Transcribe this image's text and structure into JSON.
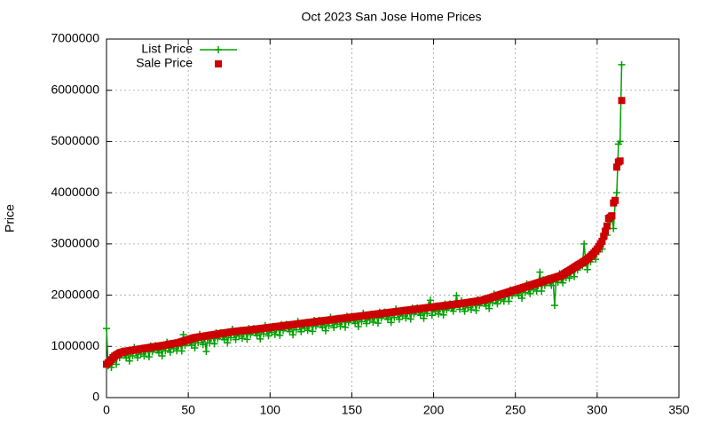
{
  "chart_data": {
    "type": "line",
    "title": "Oct 2023 San Jose Home Prices",
    "y_label": "Price",
    "grid": true,
    "legend": "top-left",
    "xlim": [
      0,
      350
    ],
    "xticks": [
      0,
      50,
      100,
      150,
      200,
      250,
      300,
      350
    ],
    "ylim": [
      0,
      7000000
    ],
    "yticks": [
      0,
      1000000,
      2000000,
      3000000,
      4000000,
      5000000,
      6000000,
      7000000
    ],
    "x": [
      0,
      1,
      2,
      3,
      4,
      5,
      6,
      7,
      8,
      9,
      10,
      11,
      12,
      13,
      14,
      15,
      16,
      17,
      18,
      19,
      20,
      21,
      22,
      23,
      24,
      25,
      26,
      27,
      28,
      29,
      30,
      31,
      32,
      33,
      34,
      35,
      36,
      37,
      38,
      39,
      40,
      41,
      42,
      43,
      44,
      45,
      46,
      47,
      48,
      49,
      50,
      51,
      52,
      53,
      54,
      55,
      56,
      57,
      58,
      59,
      60,
      61,
      62,
      63,
      64,
      65,
      66,
      67,
      68,
      69,
      70,
      71,
      72,
      73,
      74,
      75,
      76,
      77,
      78,
      79,
      80,
      81,
      82,
      83,
      84,
      85,
      86,
      87,
      88,
      89,
      90,
      91,
      92,
      93,
      94,
      95,
      96,
      97,
      98,
      99,
      100,
      101,
      102,
      103,
      104,
      105,
      106,
      107,
      108,
      109,
      110,
      111,
      112,
      113,
      114,
      115,
      116,
      117,
      118,
      119,
      120,
      121,
      122,
      123,
      124,
      125,
      126,
      127,
      128,
      129,
      130,
      131,
      132,
      133,
      134,
      135,
      136,
      137,
      138,
      139,
      140,
      141,
      142,
      143,
      144,
      145,
      146,
      147,
      148,
      149,
      150,
      151,
      152,
      153,
      154,
      155,
      156,
      157,
      158,
      159,
      160,
      161,
      162,
      163,
      164,
      165,
      166,
      167,
      168,
      169,
      170,
      171,
      172,
      173,
      174,
      175,
      176,
      177,
      178,
      179,
      180,
      181,
      182,
      183,
      184,
      185,
      186,
      187,
      188,
      189,
      190,
      191,
      192,
      193,
      194,
      195,
      196,
      197,
      198,
      199,
      200,
      201,
      202,
      203,
      204,
      205,
      206,
      207,
      208,
      209,
      210,
      211,
      212,
      213,
      214,
      215,
      216,
      217,
      218,
      219,
      220,
      221,
      222,
      223,
      224,
      225,
      226,
      227,
      228,
      229,
      230,
      231,
      232,
      233,
      234,
      235,
      236,
      237,
      238,
      239,
      240,
      241,
      242,
      243,
      244,
      245,
      246,
      247,
      248,
      249,
      250,
      251,
      252,
      253,
      254,
      255,
      256,
      257,
      258,
      259,
      260,
      261,
      262,
      263,
      264,
      265,
      266,
      267,
      268,
      269,
      270,
      271,
      272,
      273,
      274,
      275,
      276,
      277,
      278,
      279,
      280,
      281,
      282,
      283,
      284,
      285,
      286,
      287,
      288,
      289,
      290,
      291,
      292,
      293,
      294,
      295,
      296,
      297,
      298,
      299,
      300,
      301,
      302,
      303,
      304,
      305,
      306,
      307,
      308,
      309,
      310,
      311,
      312,
      313,
      314,
      315
    ],
    "series": [
      {
        "name": "List Price",
        "color": "#00a000",
        "style": "linespoints",
        "values": [
          1350000,
          620000,
          710000,
          590000,
          720000,
          790000,
          650000,
          880000,
          780000,
          830000,
          910000,
          830000,
          775000,
          880000,
          715000,
          910000,
          815000,
          980000,
          875000,
          780000,
          905000,
          850000,
          965000,
          810000,
          905000,
          950000,
          795000,
          1010000,
          895000,
          940000,
          1015000,
          930000,
          875000,
          980000,
          815000,
          1010000,
          915000,
          1080000,
          980000,
          885000,
          1010000,
          955000,
          1070000,
          915000,
          1010000,
          1060000,
          910000,
          1230000,
          1020000,
          1070000,
          1150000,
          1070000,
          1020000,
          1130000,
          970000,
          1165000,
          1070000,
          1235000,
          1130000,
          1035000,
          1160000,
          900000,
          1220000,
          1065000,
          1160000,
          1205000,
          1050000,
          1265000,
          1150000,
          1195000,
          1270000,
          1185000,
          1130000,
          1235000,
          1070000,
          1265000,
          1170000,
          1335000,
          1230000,
          1133000,
          1256000,
          1200000,
          1313000,
          1156000,
          1250000,
          1293000,
          1136000,
          1350000,
          1233000,
          1276000,
          1350000,
          1264000,
          1208000,
          1312000,
          1146000,
          1340000,
          1244000,
          1408000,
          1302000,
          1206000,
          1330000,
          1274000,
          1388000,
          1232000,
          1326000,
          1370000,
          1214000,
          1428000,
          1312000,
          1356000,
          1430000,
          1344000,
          1288000,
          1392000,
          1226000,
          1420000,
          1324000,
          1488000,
          1382000,
          1286000,
          1410000,
          1354000,
          1468000,
          1312000,
          1406000,
          1450000,
          1294000,
          1508000,
          1392000,
          1436000,
          1510000,
          1424000,
          1368000,
          1472000,
          1306000,
          1500000,
          1404000,
          1568000,
          1462000,
          1366000,
          1490000,
          1434000,
          1548000,
          1392000,
          1486000,
          1530000,
          1374000,
          1588000,
          1472000,
          1516000,
          1590000,
          1504000,
          1448000,
          1552000,
          1386000,
          1580000,
          1484000,
          1648000,
          1542000,
          1446000,
          1570000,
          1514000,
          1628000,
          1472000,
          1566000,
          1610000,
          1454000,
          1668000,
          1552000,
          1596000,
          1670000,
          1584000,
          1528000,
          1632000,
          1466000,
          1660000,
          1564000,
          1728000,
          1622000,
          1526000,
          1650000,
          1594000,
          1708000,
          1552000,
          1646000,
          1690000,
          1534000,
          1748000,
          1632000,
          1676000,
          1750000,
          1664000,
          1608000,
          1712000,
          1546000,
          1740000,
          1644000,
          1808000,
          1900000,
          1606000,
          1730000,
          1674000,
          1788000,
          1632000,
          1726000,
          1770000,
          1614000,
          1828000,
          1712000,
          1756000,
          1830000,
          1744000,
          1688000,
          1792000,
          1990000,
          1820000,
          1724000,
          1888000,
          1782000,
          1686000,
          1810000,
          1755000,
          1870000,
          1715000,
          1810000,
          1855000,
          1700000,
          1915000,
          1800000,
          1845000,
          1920000,
          1840000,
          1790000,
          1900000,
          1740000,
          1940000,
          1850000,
          2020000,
          1920000,
          1830000,
          1960000,
          1910000,
          2030000,
          1880000,
          1980000,
          2030000,
          1880000,
          2100000,
          1990000,
          2040000,
          2120000,
          2040000,
          1990000,
          2100000,
          1940000,
          2140000,
          2050000,
          2220000,
          2120000,
          2030000,
          2160000,
          2110000,
          2230000,
          2080000,
          2180000,
          2450000,
          2080000,
          2300000,
          2190000,
          2240000,
          2320000,
          2240000,
          2190000,
          2300000,
          1800000,
          2340000,
          2250000,
          2420000,
          2320000,
          2240000,
          2380000,
          2340000,
          2470000,
          2330000,
          2440000,
          2500000,
          2360000,
          2590000,
          2490000,
          2550000,
          2640000,
          2570000,
          3000000,
          2650000,
          2500000,
          2720000,
          2650000,
          2840000,
          2760000,
          2700000,
          2860000,
          2850000,
          3010000,
          2900000,
          3090000,
          3230000,
          3170000,
          3530000,
          3430000,
          3500000,
          3300000,
          3800000,
          4000000,
          4950000,
          5000000,
          6500000
        ]
      },
      {
        "name": "Sale Price",
        "color": "#cc0000",
        "style": "points",
        "values": [
          650000,
          680000,
          700000,
          740000,
          780000,
          810000,
          830000,
          850000,
          870000,
          880000,
          890000,
          900000,
          905000,
          910000,
          915000,
          920000,
          925000,
          930000,
          935000,
          940000,
          945000,
          950000,
          955000,
          960000,
          965000,
          970000,
          975000,
          980000,
          985000,
          990000,
          995000,
          1000000,
          1005000,
          1010000,
          1015000,
          1020000,
          1025000,
          1030000,
          1040000,
          1045000,
          1050000,
          1055000,
          1060000,
          1065000,
          1070000,
          1080000,
          1090000,
          1100000,
          1110000,
          1120000,
          1130000,
          1140000,
          1150000,
          1160000,
          1170000,
          1175000,
          1180000,
          1185000,
          1190000,
          1195000,
          1200000,
          1205000,
          1210000,
          1215000,
          1220000,
          1225000,
          1230000,
          1235000,
          1240000,
          1245000,
          1250000,
          1255000,
          1260000,
          1265000,
          1270000,
          1275000,
          1280000,
          1285000,
          1290000,
          1293000,
          1296000,
          1300000,
          1303000,
          1306000,
          1310000,
          1313000,
          1316000,
          1320000,
          1323000,
          1326000,
          1330000,
          1334000,
          1338000,
          1342000,
          1346000,
          1350000,
          1354000,
          1358000,
          1362000,
          1366000,
          1370000,
          1374000,
          1378000,
          1382000,
          1386000,
          1390000,
          1394000,
          1398000,
          1402000,
          1406000,
          1410000,
          1414000,
          1418000,
          1422000,
          1426000,
          1430000,
          1434000,
          1438000,
          1442000,
          1446000,
          1450000,
          1454000,
          1458000,
          1462000,
          1466000,
          1470000,
          1474000,
          1478000,
          1482000,
          1486000,
          1490000,
          1494000,
          1498000,
          1502000,
          1506000,
          1510000,
          1514000,
          1518000,
          1522000,
          1526000,
          1530000,
          1534000,
          1538000,
          1542000,
          1546000,
          1550000,
          1554000,
          1558000,
          1562000,
          1566000,
          1570000,
          1574000,
          1578000,
          1582000,
          1586000,
          1590000,
          1594000,
          1598000,
          1602000,
          1606000,
          1610000,
          1614000,
          1618000,
          1622000,
          1626000,
          1630000,
          1634000,
          1638000,
          1642000,
          1646000,
          1650000,
          1654000,
          1658000,
          1662000,
          1666000,
          1670000,
          1674000,
          1678000,
          1682000,
          1686000,
          1690000,
          1694000,
          1698000,
          1702000,
          1706000,
          1710000,
          1714000,
          1718000,
          1722000,
          1726000,
          1730000,
          1734000,
          1738000,
          1742000,
          1746000,
          1750000,
          1754000,
          1758000,
          1762000,
          1766000,
          1770000,
          1774000,
          1778000,
          1782000,
          1786000,
          1790000,
          1794000,
          1798000,
          1802000,
          1806000,
          1810000,
          1814000,
          1818000,
          1822000,
          1826000,
          1830000,
          1834000,
          1838000,
          1842000,
          1846000,
          1850000,
          1855000,
          1860000,
          1865000,
          1870000,
          1875000,
          1880000,
          1885000,
          1890000,
          1895000,
          1900000,
          1910000,
          1920000,
          1930000,
          1940000,
          1950000,
          1960000,
          1970000,
          1980000,
          1990000,
          2000000,
          2010000,
          2020000,
          2030000,
          2040000,
          2050000,
          2060000,
          2070000,
          2080000,
          2090000,
          2100000,
          2110000,
          2120000,
          2130000,
          2140000,
          2150000,
          2160000,
          2170000,
          2180000,
          2190000,
          2200000,
          2210000,
          2220000,
          2230000,
          2240000,
          2250000,
          2260000,
          2270000,
          2280000,
          2290000,
          2300000,
          2310000,
          2320000,
          2330000,
          2340000,
          2350000,
          2360000,
          2370000,
          2380000,
          2400000,
          2420000,
          2440000,
          2460000,
          2480000,
          2500000,
          2520000,
          2540000,
          2560000,
          2580000,
          2600000,
          2620000,
          2640000,
          2660000,
          2680000,
          2700000,
          2730000,
          2760000,
          2790000,
          2820000,
          2860000,
          2900000,
          2950000,
          3000000,
          3050000,
          3150000,
          3250000,
          3350000,
          3500000,
          3520000,
          3550000,
          3800000,
          3850000,
          4500000,
          4600000,
          4620000,
          5800000
        ]
      }
    ]
  }
}
